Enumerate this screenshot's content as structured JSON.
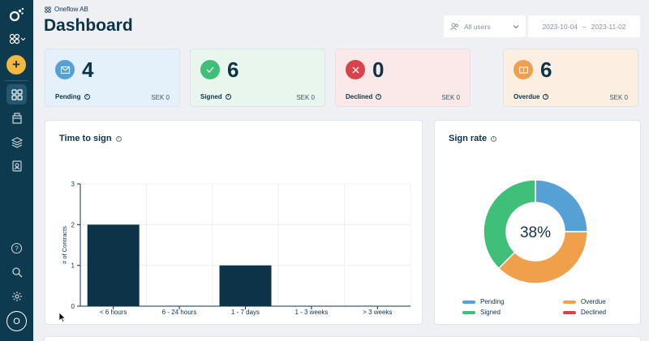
{
  "org": {
    "name": "Oneflow AB"
  },
  "page": {
    "title": "Dashboard"
  },
  "filters": {
    "users": "All users",
    "date_from": "2023-10-04",
    "date_sep": "–",
    "date_to": "2023-11-02"
  },
  "sidebar": {
    "avatar_initial": "O",
    "icons": [
      "logo-icon",
      "org-switch-icon",
      "add-icon",
      "dashboard-icon",
      "documents-icon",
      "templates-icon",
      "contacts-icon",
      "help-icon",
      "search-icon",
      "settings-icon"
    ]
  },
  "stats": [
    {
      "key": "pending",
      "value": "4",
      "label": "Pending",
      "amount": "SEK 0",
      "bg": "#e4f1fb",
      "color": "#55a0d4",
      "icon": "envelope-icon"
    },
    {
      "key": "signed",
      "value": "6",
      "label": "Signed",
      "amount": "SEK 0",
      "bg": "#e8f6ee",
      "color": "#3fbf78",
      "icon": "check-icon"
    },
    {
      "key": "declined",
      "value": "0",
      "label": "Declined",
      "amount": "SEK 0",
      "bg": "#fbe9ea",
      "color": "#d8434a",
      "icon": "x-icon"
    },
    {
      "key": "overdue",
      "value": "6",
      "label": "Overdue",
      "amount": "SEK 0",
      "bg": "#fcefe1",
      "color": "#f0a04b",
      "icon": "book-icon"
    }
  ],
  "time_to_sign": {
    "title": "Time to sign",
    "info": "i"
  },
  "sign_rate": {
    "title": "Sign rate",
    "info": "i",
    "center_label": "38%",
    "legend": [
      {
        "name": "Pending",
        "color": "#55a0d4"
      },
      {
        "name": "Overdue",
        "color": "#f0a04b"
      },
      {
        "name": "Signed",
        "color": "#3fbf78"
      },
      {
        "name": "Declined",
        "color": "#d8434a"
      }
    ]
  },
  "chart_data": [
    {
      "type": "bar",
      "title": "Time to sign",
      "categories": [
        "< 6 hours",
        "6 - 24 hours",
        "1 - 7 days",
        "1 - 3 weeks",
        "> 3 weeks"
      ],
      "values": [
        2,
        0,
        1,
        0,
        0
      ],
      "xlabel": "",
      "ylabel": "# of Contracts",
      "ylim": [
        0,
        3
      ],
      "yticks": [
        "0",
        "1",
        "2",
        "3"
      ],
      "grid": true,
      "bar_color": "#0d3349"
    },
    {
      "type": "pie",
      "title": "Sign rate",
      "categories": [
        "Pending",
        "Overdue",
        "Signed",
        "Declined"
      ],
      "values": [
        4,
        6,
        6,
        0
      ],
      "colors": [
        "#55a0d4",
        "#f0a04b",
        "#3fbf78",
        "#d8434a"
      ],
      "center_label": "38%"
    }
  ]
}
